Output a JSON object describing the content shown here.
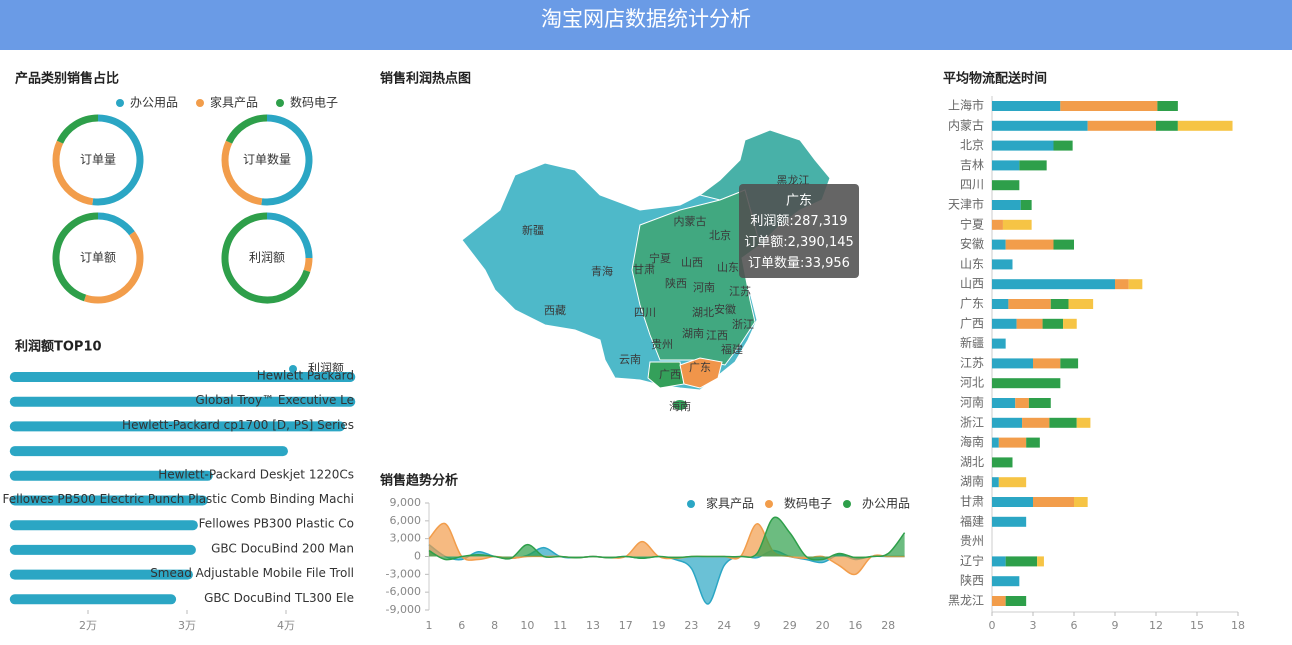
{
  "header": {
    "title": "淘宝网店数据统计分析"
  },
  "chart_data": [
    {
      "type": "pie",
      "title": "产品类别销售占比",
      "categories": [
        "办公用品",
        "家具产品",
        "数码电子"
      ],
      "colors": [
        "#2ba6c4",
        "#f29d4b",
        "#2e9f4a"
      ],
      "series": [
        {
          "name": "订单量",
          "values": [
            52,
            30,
            18
          ]
        },
        {
          "name": "订单数量",
          "values": [
            52,
            30,
            18
          ]
        },
        {
          "name": "订单额",
          "values": [
            15,
            40,
            45
          ]
        },
        {
          "name": "利润额",
          "values": [
            25,
            5,
            70
          ]
        }
      ]
    },
    {
      "type": "hbar",
      "title": "利润额TOP10",
      "series": [
        {
          "name": "利润额",
          "color": "#2ba6c4",
          "values": [
            47000,
            47000,
            45960,
            40200,
            32600,
            32100,
            31100,
            30900,
            30600,
            28900
          ]
        }
      ],
      "categories": [
        "Hewlett Packard",
        "Global Troy™ Executive Le",
        "Hewlett-Packard cp1700 [D, PS] Series",
        null,
        "Hewlett-Packard Deskjet 1220Cs",
        "Fellowes PB500 Electric Punch Plastic Comb Binding Machi",
        "Fellowes PB300 Plastic Co",
        "GBC DocuBind 200 Man",
        "Smead Adjustable Mobile File Troll",
        "GBC DocuBind TL300 Ele"
      ],
      "xlim": [
        12100,
        47000
      ],
      "xticks": [
        {
          "value": 20000,
          "label": "2万"
        },
        {
          "value": 30000,
          "label": "3万"
        },
        {
          "value": 40000,
          "label": "4万"
        }
      ]
    },
    {
      "type": "map",
      "title": "销售利润热点图",
      "regions": [
        "新疆",
        "西藏",
        "青海",
        "甘肃",
        "宁夏",
        "内蒙古",
        "山西",
        "北京",
        "山东",
        "河南",
        "陕西",
        "四川",
        "湖北",
        "安徽",
        "江苏",
        "浙江",
        "湖南",
        "江西",
        "福建",
        "贵州",
        "云南",
        "广西",
        "广东",
        "海南",
        "黑龙江"
      ],
      "tooltip": {
        "name": "广东",
        "labels": [
          "利润额:",
          "订单额:",
          "订单数量:"
        ],
        "values": [
          287319,
          2390145,
          33956
        ],
        "value_labels": [
          "287,319",
          "2,390,145",
          "33,956"
        ]
      }
    },
    {
      "type": "area",
      "title": "销售趋势分析",
      "categories": [
        "1",
        null,
        "6",
        null,
        "8",
        null,
        "10",
        null,
        "11",
        null,
        "13",
        null,
        "17",
        null,
        "19",
        null,
        "23",
        null,
        "24",
        null,
        "9",
        null,
        "29",
        null,
        "20",
        null,
        "16",
        null,
        "28",
        null
      ],
      "series": [
        {
          "name": "家具产品",
          "color": "#2ba6c4",
          "values": [
            2000,
            0,
            -500,
            800,
            0,
            -300,
            200,
            1500,
            0,
            -200,
            0,
            -200,
            0,
            -300,
            0,
            -500,
            -2000,
            -8000,
            -1500,
            0,
            -200,
            1000,
            0,
            -500,
            -1000,
            300,
            -500,
            0,
            0,
            0
          ]
        },
        {
          "name": "数码电子",
          "color": "#f29d4b",
          "values": [
            3000,
            5500,
            0,
            -500,
            0,
            -300,
            0,
            0,
            0,
            -200,
            0,
            -200,
            0,
            2500,
            0,
            -300,
            0,
            0,
            0,
            0,
            5500,
            800,
            0,
            -300,
            0,
            -1500,
            -3000,
            0,
            0,
            0
          ]
        },
        {
          "name": "办公用品",
          "color": "#2e9f4a",
          "values": [
            1000,
            -500,
            0,
            300,
            0,
            -300,
            2000,
            0,
            0,
            -200,
            0,
            -200,
            0,
            -300,
            0,
            -200,
            0,
            0,
            0,
            0,
            500,
            6500,
            4000,
            0,
            -500,
            500,
            -200,
            0,
            500,
            4000
          ]
        }
      ],
      "ylim": [
        -9000,
        9000
      ],
      "yticks": [
        {
          "value": 9000,
          "label": "9,000"
        },
        {
          "value": 6000,
          "label": "6,000"
        },
        {
          "value": 3000,
          "label": "3,000"
        },
        0,
        {
          "value": -3000,
          "label": "-3,000"
        },
        {
          "value": -6000,
          "label": "-6,000"
        },
        {
          "value": -9000,
          "label": "-9,000"
        }
      ]
    },
    {
      "type": "stacked-hbar",
      "title": "平均物流配送时间",
      "categories": [
        "上海市",
        "内蒙古",
        "北京",
        "吉林",
        "四川",
        "天津市",
        "宁夏",
        "安徽",
        "山东",
        "山西",
        "广东",
        "广西",
        "新疆",
        "江苏",
        "河北",
        "河南",
        "浙江",
        "海南",
        "湖北",
        "湖南",
        "甘肃",
        "福建",
        "贵州",
        "辽宁",
        "陕西",
        "黑龙江"
      ],
      "series": [
        {
          "color": "#2ba6c4",
          "values": [
            5,
            7,
            4.5,
            2,
            0,
            2.1,
            0,
            1,
            1.5,
            9,
            1.2,
            1.8,
            1,
            3,
            0,
            1.7,
            2.2,
            0.5,
            0,
            0.5,
            3,
            2.5,
            0,
            1,
            2,
            0
          ]
        },
        {
          "color": "#f29d4b",
          "values": [
            7.1,
            5,
            0,
            0,
            0,
            0,
            0.8,
            3.5,
            0,
            1,
            3.1,
            1.9,
            0,
            2,
            0,
            1,
            2,
            2,
            0,
            0,
            3,
            0,
            0,
            0,
            0,
            1
          ]
        },
        {
          "color": "#2e9f4a",
          "values": [
            1.5,
            1.6,
            1.4,
            2,
            2,
            0.8,
            0,
            1.5,
            0,
            0,
            1.3,
            1.5,
            0,
            1.3,
            5,
            1.6,
            2,
            1,
            1.5,
            0,
            0,
            0,
            0,
            2.3,
            0,
            1.5
          ]
        },
        {
          "color": "#f6c445",
          "values": [
            0,
            4,
            0,
            0,
            0,
            0,
            2.1,
            0,
            0,
            1,
            1.8,
            1,
            0,
            0,
            0,
            0,
            1,
            0,
            0,
            2,
            1,
            0,
            0,
            0.5,
            0,
            0
          ]
        }
      ],
      "xlim": [
        0,
        18
      ],
      "xticks": [
        0,
        3,
        6,
        9,
        12,
        15,
        18
      ]
    }
  ]
}
